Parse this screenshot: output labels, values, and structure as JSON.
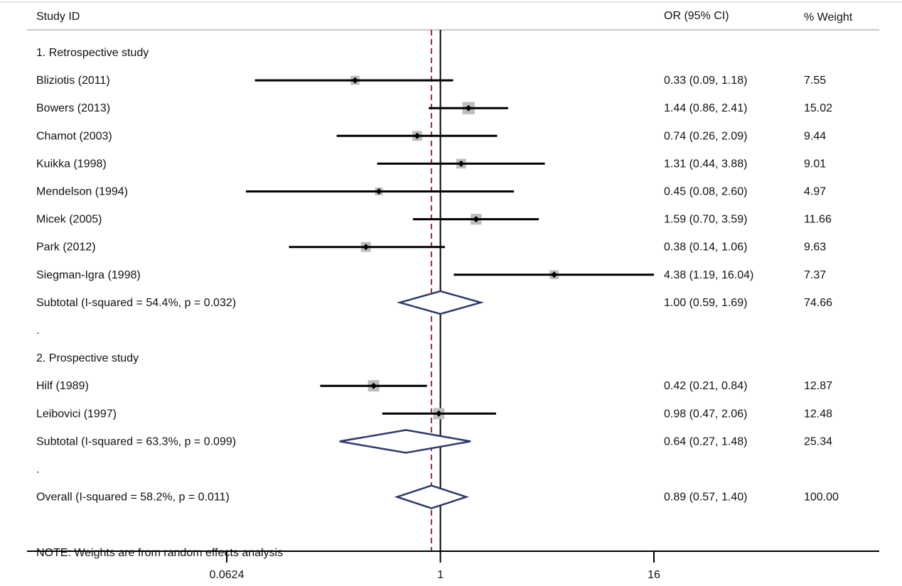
{
  "chart_data": {
    "type": "forest",
    "header": {
      "study_col": "Study ID",
      "or_col": "OR (95% CI)",
      "weight_col": "% Weight"
    },
    "x_scale": "log2",
    "xlim": [
      0.0624,
      16
    ],
    "x_ticks": [
      {
        "value": 0.0624,
        "label": "0.0624"
      },
      {
        "value": 1,
        "label": "1"
      },
      {
        "value": 16,
        "label": "16"
      }
    ],
    "null_line": 1,
    "overall_line": 0.89,
    "rows": [
      {
        "kind": "group",
        "label": "1. Retrospective study"
      },
      {
        "kind": "study",
        "label": "Bliziotis (2011)",
        "or": 0.33,
        "lo": 0.09,
        "hi": 1.18,
        "or_text": "0.33 (0.09, 1.18)",
        "weight": "7.55"
      },
      {
        "kind": "study",
        "label": "Bowers (2013)",
        "or": 1.44,
        "lo": 0.86,
        "hi": 2.41,
        "or_text": "1.44 (0.86, 2.41)",
        "weight": "15.02"
      },
      {
        "kind": "study",
        "label": "Chamot (2003)",
        "or": 0.74,
        "lo": 0.26,
        "hi": 2.09,
        "or_text": "0.74 (0.26, 2.09)",
        "weight": "9.44"
      },
      {
        "kind": "study",
        "label": "Kuikka (1998)",
        "or": 1.31,
        "lo": 0.44,
        "hi": 3.88,
        "or_text": "1.31 (0.44, 3.88)",
        "weight": "9.01"
      },
      {
        "kind": "study",
        "label": "Mendelson (1994)",
        "or": 0.45,
        "lo": 0.08,
        "hi": 2.6,
        "or_text": "0.45 (0.08, 2.60)",
        "weight": "4.97"
      },
      {
        "kind": "study",
        "label": "Micek (2005)",
        "or": 1.59,
        "lo": 0.7,
        "hi": 3.59,
        "or_text": "1.59 (0.70, 3.59)",
        "weight": "11.66"
      },
      {
        "kind": "study",
        "label": "Park (2012)",
        "or": 0.38,
        "lo": 0.14,
        "hi": 1.06,
        "or_text": "0.38 (0.14, 1.06)",
        "weight": "9.63"
      },
      {
        "kind": "study",
        "label": "Siegman-Igra (1998)",
        "or": 4.38,
        "lo": 1.19,
        "hi": 16.04,
        "or_text": "4.38 (1.19, 16.04)",
        "weight": "7.37"
      },
      {
        "kind": "subtotal",
        "label": "Subtotal  (I-squared = 54.4%, p = 0.032)",
        "or": 1.0,
        "lo": 0.59,
        "hi": 1.69,
        "or_text": "1.00 (0.59, 1.69)",
        "weight": "74.66"
      },
      {
        "kind": "spacer",
        "label": "."
      },
      {
        "kind": "group",
        "label": "2. Prospective study"
      },
      {
        "kind": "study",
        "label": "Hilf (1989)",
        "or": 0.42,
        "lo": 0.21,
        "hi": 0.84,
        "or_text": "0.42 (0.21, 0.84)",
        "weight": "12.87"
      },
      {
        "kind": "study",
        "label": "Leibovici (1997)",
        "or": 0.98,
        "lo": 0.47,
        "hi": 2.06,
        "or_text": "0.98 (0.47, 2.06)",
        "weight": "12.48"
      },
      {
        "kind": "subtotal",
        "label": "Subtotal  (I-squared = 63.3%, p = 0.099)",
        "or": 0.64,
        "lo": 0.27,
        "hi": 1.48,
        "or_text": "0.64 (0.27, 1.48)",
        "weight": "25.34"
      },
      {
        "kind": "spacer",
        "label": "."
      },
      {
        "kind": "overall",
        "label": "Overall  (I-squared = 58.2%, p = 0.011)",
        "or": 0.89,
        "lo": 0.57,
        "hi": 1.4,
        "or_text": "0.89 (0.57, 1.40)",
        "weight": "100.00"
      },
      {
        "kind": "spacer",
        "label": ""
      },
      {
        "kind": "note",
        "label": "NOTE: Weights are from random effects analysis"
      }
    ],
    "colors": {
      "ci_line": "#000000",
      "box": "#bdbdbd",
      "diamond": "#2b3a6b",
      "null_line": "#000000",
      "overall_line": "#a03040",
      "rule": "#c8c8c8"
    }
  }
}
